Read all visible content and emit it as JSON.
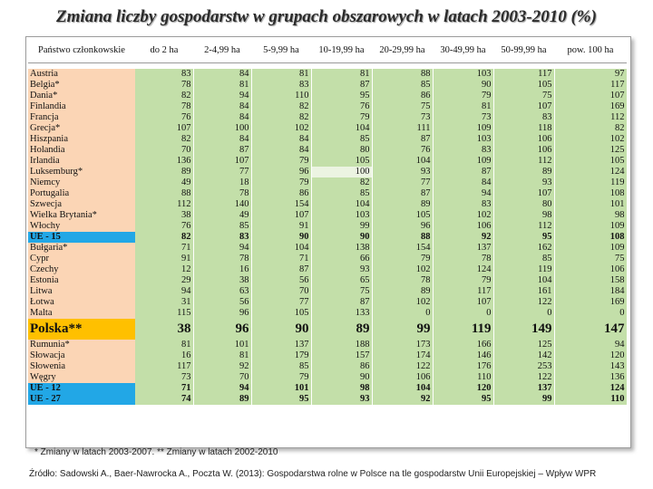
{
  "title": "Zmiana liczby gospodarstw w grupach obszarowych w latach 2003-2010 (%)",
  "headers": [
    "Państwo członkowskie",
    "do 2 ha",
    "2-4,99 ha",
    "5-9,99 ha",
    "10-19,99 ha",
    "20-29,99 ha",
    "30-49,99 ha",
    "50-99,99 ha",
    "pow. 100 ha"
  ],
  "colors": {
    "orange": "#fbd5b5",
    "green": "#c3dfa9",
    "blue": "#22a7e6",
    "yellow": "#ffc000"
  },
  "group1": [
    {
      "name": "Austria",
      "v": [
        "83",
        "84",
        "81",
        "81",
        "88",
        "103",
        "117",
        "97"
      ]
    },
    {
      "name": "Belgia*",
      "v": [
        "78",
        "81",
        "83",
        "87",
        "85",
        "90",
        "105",
        "117"
      ]
    },
    {
      "name": "Dania*",
      "v": [
        "82",
        "94",
        "110",
        "95",
        "86",
        "79",
        "75",
        "107"
      ]
    },
    {
      "name": "Finlandia",
      "v": [
        "78",
        "84",
        "82",
        "76",
        "75",
        "81",
        "107",
        "169"
      ]
    },
    {
      "name": "Francja",
      "v": [
        "76",
        "84",
        "82",
        "79",
        "73",
        "73",
        "83",
        "112"
      ]
    },
    {
      "name": "Grecja*",
      "v": [
        "107",
        "100",
        "102",
        "104",
        "111",
        "109",
        "118",
        "82"
      ]
    },
    {
      "name": "Hiszpania",
      "v": [
        "82",
        "84",
        "84",
        "85",
        "87",
        "103",
        "106",
        "102"
      ]
    },
    {
      "name": "Holandia",
      "v": [
        "70",
        "87",
        "84",
        "80",
        "76",
        "83",
        "106",
        "125"
      ]
    },
    {
      "name": "Irlandia",
      "v": [
        "136",
        "107",
        "79",
        "105",
        "104",
        "109",
        "112",
        "105"
      ]
    },
    {
      "name": "Luksemburg*",
      "v": [
        "89",
        "77",
        "96",
        "100",
        "93",
        "87",
        "89",
        "124"
      ]
    },
    {
      "name": "Niemcy",
      "v": [
        "49",
        "18",
        "79",
        "82",
        "77",
        "84",
        "93",
        "119"
      ]
    },
    {
      "name": "Portugalia",
      "v": [
        "88",
        "78",
        "86",
        "85",
        "87",
        "94",
        "107",
        "108"
      ]
    },
    {
      "name": "Szwecja",
      "v": [
        "112",
        "140",
        "154",
        "104",
        "89",
        "83",
        "80",
        "101"
      ]
    },
    {
      "name": "Wielka Brytania*",
      "v": [
        "38",
        "49",
        "107",
        "103",
        "105",
        "102",
        "98",
        "98"
      ]
    },
    {
      "name": "Włochy",
      "v": [
        "76",
        "85",
        "91",
        "99",
        "96",
        "106",
        "112",
        "109"
      ]
    }
  ],
  "eu15": {
    "name": "UE - 15",
    "v": [
      "82",
      "83",
      "90",
      "90",
      "88",
      "92",
      "95",
      "108"
    ]
  },
  "group2": [
    {
      "name": "Bułgaria*",
      "v": [
        "71",
        "94",
        "104",
        "138",
        "154",
        "137",
        "162",
        "109"
      ]
    },
    {
      "name": "Cypr",
      "v": [
        "91",
        "78",
        "71",
        "66",
        "79",
        "78",
        "85",
        "75"
      ]
    },
    {
      "name": "Czechy",
      "v": [
        "12",
        "16",
        "87",
        "93",
        "102",
        "124",
        "119",
        "106"
      ]
    },
    {
      "name": "Estonia",
      "v": [
        "29",
        "38",
        "56",
        "65",
        "78",
        "79",
        "104",
        "158"
      ]
    },
    {
      "name": "Litwa",
      "v": [
        "94",
        "63",
        "70",
        "75",
        "89",
        "117",
        "161",
        "184"
      ]
    },
    {
      "name": "Łotwa",
      "v": [
        "31",
        "56",
        "77",
        "87",
        "102",
        "107",
        "122",
        "169"
      ]
    },
    {
      "name": "Malta",
      "v": [
        "115",
        "96",
        "105",
        "133",
        "0",
        "0",
        "0",
        "0"
      ]
    }
  ],
  "polska": {
    "name": "Polska**",
    "v": [
      "38",
      "96",
      "90",
      "89",
      "99",
      "119",
      "149",
      "147"
    ]
  },
  "group3": [
    {
      "name": "Rumunia*",
      "v": [
        "81",
        "101",
        "137",
        "188",
        "173",
        "166",
        "125",
        "94"
      ]
    },
    {
      "name": "Słowacja",
      "v": [
        "16",
        "81",
        "179",
        "157",
        "174",
        "146",
        "142",
        "120"
      ]
    },
    {
      "name": "Słowenia",
      "v": [
        "117",
        "92",
        "85",
        "86",
        "122",
        "176",
        "253",
        "143"
      ]
    },
    {
      "name": "Węgry",
      "v": [
        "73",
        "70",
        "79",
        "90",
        "106",
        "110",
        "122",
        "136"
      ]
    }
  ],
  "eu12": {
    "name": "UE - 12",
    "v": [
      "71",
      "94",
      "101",
      "98",
      "104",
      "120",
      "137",
      "124"
    ]
  },
  "eu27": {
    "name": "UE - 27",
    "v": [
      "74",
      "89",
      "95",
      "93",
      "92",
      "95",
      "99",
      "110"
    ]
  },
  "footnote": "* Zmiany w latach 2003-2007. ** Zmiany w latach 2002-2010",
  "source": "Źródło: Sadowski A., Baer-Nawrocka A., Poczta W. (2013): Gospodarstwa rolne w Polsce na tle gospodarstw Unii Europejskiej – Wpływ WPR"
}
